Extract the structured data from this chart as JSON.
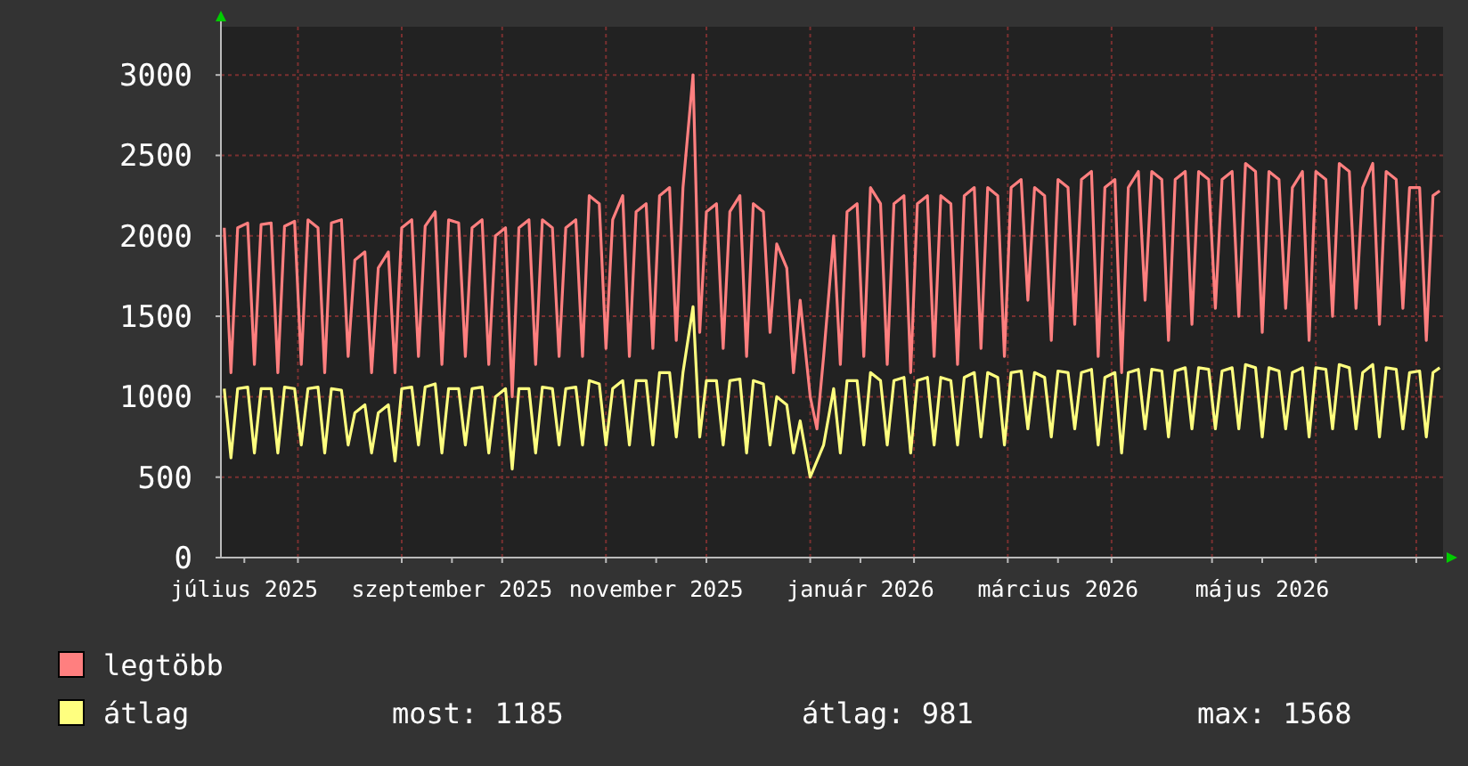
{
  "chart_data": {
    "type": "line",
    "legend": "bottom",
    "grid": true,
    "marker": "none",
    "line_style": "solid",
    "xlim": [
      "2025-07-09",
      "2026-07-09"
    ],
    "ylim": [
      0,
      3300
    ],
    "yticks": [
      0,
      500,
      1000,
      1500,
      2000,
      2500,
      3000
    ],
    "xticks": [
      {
        "value": "2025-07-16",
        "label": "július 2025"
      },
      {
        "value": "2025-08-01",
        "label": null
      },
      {
        "value": "2025-09-01",
        "label": null
      },
      {
        "value": "2025-09-16",
        "label": "szeptember 2025"
      },
      {
        "value": "2025-10-01",
        "label": null
      },
      {
        "value": "2025-11-01",
        "label": null
      },
      {
        "value": "2025-11-16",
        "label": "november 2025"
      },
      {
        "value": "2025-12-01",
        "label": null
      },
      {
        "value": "2026-01-01",
        "label": null
      },
      {
        "value": "2026-01-16",
        "label": "január 2026"
      },
      {
        "value": "2026-02-01",
        "label": null
      },
      {
        "value": "2026-03-01",
        "label": null
      },
      {
        "value": "2026-03-16",
        "label": "március 2026"
      },
      {
        "value": "2026-04-01",
        "label": null
      },
      {
        "value": "2026-05-01",
        "label": null
      },
      {
        "value": "2026-05-16",
        "label": "május 2026"
      },
      {
        "value": "2026-06-01",
        "label": null
      },
      {
        "value": "2026-07-01",
        "label": null
      }
    ],
    "x": [
      "2025-07-10",
      "2025-07-12",
      "2025-07-14",
      "2025-07-17",
      "2025-07-19",
      "2025-07-21",
      "2025-07-24",
      "2025-07-26",
      "2025-07-28",
      "2025-07-31",
      "2025-08-02",
      "2025-08-04",
      "2025-08-07",
      "2025-08-09",
      "2025-08-11",
      "2025-08-14",
      "2025-08-16",
      "2025-08-18",
      "2025-08-21",
      "2025-08-23",
      "2025-08-25",
      "2025-08-28",
      "2025-08-30",
      "2025-09-01",
      "2025-09-04",
      "2025-09-06",
      "2025-09-08",
      "2025-09-11",
      "2025-09-13",
      "2025-09-15",
      "2025-09-18",
      "2025-09-20",
      "2025-09-22",
      "2025-09-25",
      "2025-09-27",
      "2025-09-29",
      "2025-10-02",
      "2025-10-04",
      "2025-10-06",
      "2025-10-09",
      "2025-10-11",
      "2025-10-13",
      "2025-10-16",
      "2025-10-18",
      "2025-10-20",
      "2025-10-23",
      "2025-10-25",
      "2025-10-27",
      "2025-10-30",
      "2025-11-01",
      "2025-11-03",
      "2025-11-06",
      "2025-11-08",
      "2025-11-10",
      "2025-11-13",
      "2025-11-15",
      "2025-11-17",
      "2025-11-20",
      "2025-11-22",
      "2025-11-24",
      "2025-11-27",
      "2025-11-29",
      "2025-12-01",
      "2025-12-04",
      "2025-12-06",
      "2025-12-08",
      "2025-12-11",
      "2025-12-13",
      "2025-12-15",
      "2025-12-18",
      "2025-12-20",
      "2025-12-22",
      "2025-12-25",
      "2025-12-27",
      "2025-12-29",
      "2026-01-01",
      "2026-01-03",
      "2026-01-05",
      "2026-01-08",
      "2026-01-10",
      "2026-01-12",
      "2026-01-15",
      "2026-01-17",
      "2026-01-19",
      "2026-01-22",
      "2026-01-24",
      "2026-01-26",
      "2026-01-29",
      "2026-01-31",
      "2026-02-02",
      "2026-02-05",
      "2026-02-07",
      "2026-02-09",
      "2026-02-12",
      "2026-02-14",
      "2026-02-16",
      "2026-02-19",
      "2026-02-21",
      "2026-02-23",
      "2026-02-26",
      "2026-02-28",
      "2026-03-02",
      "2026-03-05",
      "2026-03-07",
      "2026-03-09",
      "2026-03-12",
      "2026-03-14",
      "2026-03-16",
      "2026-03-19",
      "2026-03-21",
      "2026-03-23",
      "2026-03-26",
      "2026-03-28",
      "2026-03-30",
      "2026-04-02",
      "2026-04-04",
      "2026-04-06",
      "2026-04-09",
      "2026-04-11",
      "2026-04-13",
      "2026-04-16",
      "2026-04-18",
      "2026-04-20",
      "2026-04-23",
      "2026-04-25",
      "2026-04-27",
      "2026-04-30",
      "2026-05-02",
      "2026-05-04",
      "2026-05-07",
      "2026-05-09",
      "2026-05-11",
      "2026-05-14",
      "2026-05-16",
      "2026-05-18",
      "2026-05-21",
      "2026-05-23",
      "2026-05-25",
      "2026-05-28",
      "2026-05-30",
      "2026-06-01",
      "2026-06-04",
      "2026-06-06",
      "2026-06-08",
      "2026-06-11",
      "2026-06-13",
      "2026-06-15",
      "2026-06-18",
      "2026-06-20",
      "2026-06-22",
      "2026-06-25",
      "2026-06-27",
      "2026-06-29",
      "2026-07-02",
      "2026-07-04",
      "2026-07-06",
      "2026-07-08"
    ],
    "series": [
      {
        "name": "legtöbb",
        "color": "#ff7f7f",
        "values": [
          2050,
          1150,
          2050,
          2080,
          1200,
          2070,
          2080,
          1150,
          2060,
          2090,
          1200,
          2100,
          2050,
          1150,
          2080,
          2100,
          1250,
          1850,
          1900,
          1150,
          1800,
          1900,
          1150,
          2050,
          2100,
          1250,
          2060,
          2150,
          1200,
          2100,
          2080,
          1250,
          2050,
          2100,
          1200,
          2000,
          2050,
          1000,
          2050,
          2100,
          1200,
          2100,
          2050,
          1250,
          2050,
          2100,
          1250,
          2250,
          2200,
          1300,
          2100,
          2250,
          1250,
          2150,
          2200,
          1300,
          2250,
          2300,
          1350,
          2300,
          3000,
          1400,
          2150,
          2200,
          1300,
          2150,
          2250,
          1250,
          2200,
          2150,
          1400,
          1950,
          1800,
          1150,
          1600,
          1000,
          800,
          1250,
          2000,
          1200,
          2150,
          2200,
          1250,
          2300,
          2200,
          1200,
          2200,
          2250,
          1150,
          2200,
          2250,
          1250,
          2250,
          2200,
          1200,
          2250,
          2300,
          1300,
          2300,
          2250,
          1250,
          2300,
          2350,
          1600,
          2300,
          2250,
          1350,
          2350,
          2300,
          1450,
          2350,
          2400,
          1250,
          2300,
          2350,
          1150,
          2300,
          2400,
          1600,
          2400,
          2350,
          1350,
          2350,
          2400,
          1450,
          2400,
          2350,
          1550,
          2350,
          2400,
          1500,
          2450,
          2400,
          1400,
          2400,
          2350,
          1550,
          2300,
          2400,
          1350,
          2400,
          2350,
          1500,
          2450,
          2400,
          1550,
          2300,
          2450,
          1450,
          2400,
          2350,
          1550,
          2300,
          2300,
          1350,
          2250,
          2280
        ]
      },
      {
        "name": "átlag",
        "color": "#ffff7f",
        "values": [
          1050,
          620,
          1050,
          1060,
          650,
          1050,
          1050,
          650,
          1060,
          1050,
          700,
          1050,
          1060,
          650,
          1050,
          1040,
          700,
          900,
          950,
          650,
          900,
          950,
          600,
          1050,
          1060,
          700,
          1060,
          1080,
          650,
          1050,
          1050,
          700,
          1050,
          1060,
          650,
          1000,
          1050,
          550,
          1050,
          1050,
          650,
          1060,
          1050,
          700,
          1050,
          1060,
          700,
          1100,
          1080,
          700,
          1050,
          1100,
          700,
          1100,
          1100,
          700,
          1150,
          1150,
          750,
          1150,
          1560,
          750,
          1100,
          1100,
          700,
          1100,
          1110,
          650,
          1100,
          1080,
          700,
          1000,
          950,
          650,
          850,
          500,
          600,
          700,
          1050,
          650,
          1100,
          1100,
          700,
          1150,
          1100,
          700,
          1100,
          1120,
          650,
          1100,
          1120,
          700,
          1120,
          1100,
          700,
          1120,
          1150,
          750,
          1150,
          1120,
          700,
          1150,
          1160,
          800,
          1150,
          1120,
          750,
          1160,
          1150,
          800,
          1150,
          1170,
          700,
          1120,
          1150,
          650,
          1150,
          1170,
          800,
          1170,
          1160,
          750,
          1160,
          1180,
          800,
          1180,
          1170,
          800,
          1160,
          1180,
          800,
          1200,
          1180,
          750,
          1180,
          1160,
          800,
          1150,
          1180,
          750,
          1180,
          1170,
          800,
          1200,
          1180,
          800,
          1150,
          1200,
          750,
          1180,
          1170,
          800,
          1150,
          1160,
          750,
          1150,
          1180
        ]
      }
    ],
    "annotations": [
      "most: 1185",
      "átlag: 981",
      "max: 1568"
    ]
  }
}
